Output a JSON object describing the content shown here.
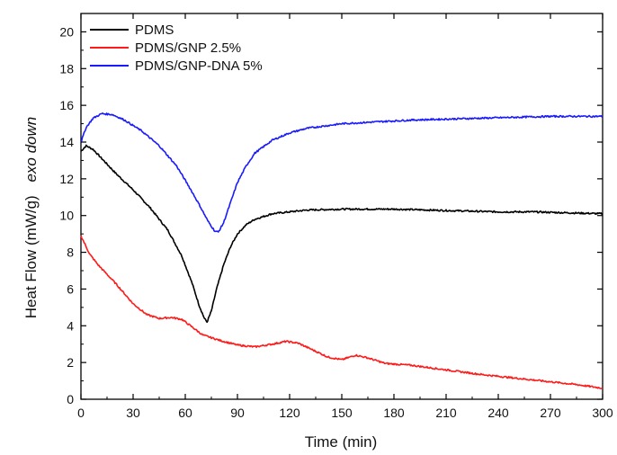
{
  "chart_data": {
    "type": "line",
    "xlabel": "Time (min)",
    "ylabel": "Heat Flow (mW/g)",
    "ylabel_note": "exo down",
    "xlim": [
      0,
      300
    ],
    "ylim": [
      0,
      21
    ],
    "xticks": [
      0,
      30,
      60,
      90,
      120,
      150,
      180,
      210,
      240,
      270,
      300
    ],
    "yticks": [
      0,
      2,
      4,
      6,
      8,
      10,
      12,
      14,
      16,
      18,
      20
    ],
    "grid": false,
    "legend_position": "top-left",
    "series": [
      {
        "name": "PDMS",
        "color": "#000000",
        "points": [
          [
            0,
            13.5
          ],
          [
            3,
            13.8
          ],
          [
            7,
            13.6
          ],
          [
            12,
            13.1
          ],
          [
            20,
            12.3
          ],
          [
            30,
            11.4
          ],
          [
            40,
            10.4
          ],
          [
            50,
            9.2
          ],
          [
            58,
            7.8
          ],
          [
            64,
            6.3
          ],
          [
            68,
            5.1
          ],
          [
            71,
            4.4
          ],
          [
            72.5,
            4.2
          ],
          [
            75,
            4.8
          ],
          [
            78,
            6.0
          ],
          [
            82,
            7.3
          ],
          [
            86,
            8.3
          ],
          [
            90,
            9.0
          ],
          [
            95,
            9.5
          ],
          [
            100,
            9.8
          ],
          [
            110,
            10.1
          ],
          [
            120,
            10.2
          ],
          [
            130,
            10.3
          ],
          [
            150,
            10.35
          ],
          [
            180,
            10.35
          ],
          [
            200,
            10.3
          ],
          [
            220,
            10.25
          ],
          [
            240,
            10.2
          ],
          [
            260,
            10.2
          ],
          [
            280,
            10.15
          ],
          [
            300,
            10.1
          ]
        ]
      },
      {
        "name": "PDMS/GNP 2.5%",
        "color": "#ff1a1a",
        "points": [
          [
            0,
            8.9
          ],
          [
            5,
            7.9
          ],
          [
            10,
            7.3
          ],
          [
            20,
            6.3
          ],
          [
            30,
            5.2
          ],
          [
            38,
            4.6
          ],
          [
            45,
            4.4
          ],
          [
            52,
            4.45
          ],
          [
            58,
            4.35
          ],
          [
            63,
            4.0
          ],
          [
            70,
            3.5
          ],
          [
            80,
            3.2
          ],
          [
            90,
            2.95
          ],
          [
            100,
            2.85
          ],
          [
            110,
            3.0
          ],
          [
            118,
            3.15
          ],
          [
            125,
            3.05
          ],
          [
            133,
            2.7
          ],
          [
            142,
            2.3
          ],
          [
            150,
            2.15
          ],
          [
            158,
            2.4
          ],
          [
            165,
            2.25
          ],
          [
            175,
            1.95
          ],
          [
            190,
            1.85
          ],
          [
            210,
            1.6
          ],
          [
            230,
            1.35
          ],
          [
            250,
            1.15
          ],
          [
            270,
            0.95
          ],
          [
            285,
            0.8
          ],
          [
            300,
            0.6
          ]
        ]
      },
      {
        "name": "PDMS/GNP-DNA 5%",
        "color": "#1a1aff",
        "points": [
          [
            0,
            14.0
          ],
          [
            3,
            14.8
          ],
          [
            7,
            15.3
          ],
          [
            12,
            15.55
          ],
          [
            18,
            15.5
          ],
          [
            25,
            15.2
          ],
          [
            35,
            14.6
          ],
          [
            45,
            13.8
          ],
          [
            55,
            12.7
          ],
          [
            62,
            11.6
          ],
          [
            68,
            10.6
          ],
          [
            73,
            9.7
          ],
          [
            77,
            9.15
          ],
          [
            79,
            9.1
          ],
          [
            82,
            9.6
          ],
          [
            86,
            10.7
          ],
          [
            90,
            11.8
          ],
          [
            95,
            12.7
          ],
          [
            100,
            13.4
          ],
          [
            110,
            14.1
          ],
          [
            120,
            14.5
          ],
          [
            130,
            14.75
          ],
          [
            150,
            15.0
          ],
          [
            170,
            15.1
          ],
          [
            190,
            15.2
          ],
          [
            210,
            15.25
          ],
          [
            230,
            15.3
          ],
          [
            250,
            15.35
          ],
          [
            270,
            15.4
          ],
          [
            290,
            15.4
          ],
          [
            300,
            15.4
          ]
        ]
      }
    ]
  }
}
